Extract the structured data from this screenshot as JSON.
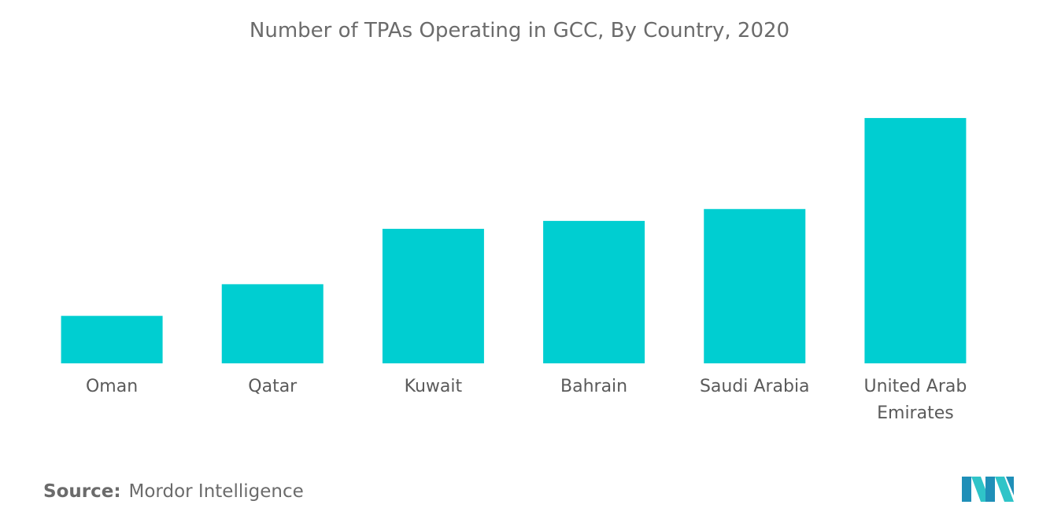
{
  "chart_data": {
    "type": "bar",
    "title": "Number of TPAs Operating in GCC, By Country, 2020",
    "categories": [
      [
        "Oman"
      ],
      [
        "Qatar"
      ],
      [
        "Kuwait"
      ],
      [
        "Bahrain"
      ],
      [
        "Saudi Arabia"
      ],
      [
        "United Arab",
        "Emirates"
      ]
    ],
    "values": [
      6,
      10,
      17,
      18,
      19.5,
      31
    ],
    "ylim": [
      0,
      32
    ],
    "xlabel": "",
    "ylabel": "",
    "grid": false,
    "colors": {
      "bar": "#00ced1"
    }
  },
  "source": {
    "label": "Source:",
    "text": "Mordor Intelligence"
  },
  "logo": {
    "icon": "mordor-intelligence-logo-icon",
    "colors": [
      "#1f8fb8",
      "#2fc4c8"
    ]
  }
}
